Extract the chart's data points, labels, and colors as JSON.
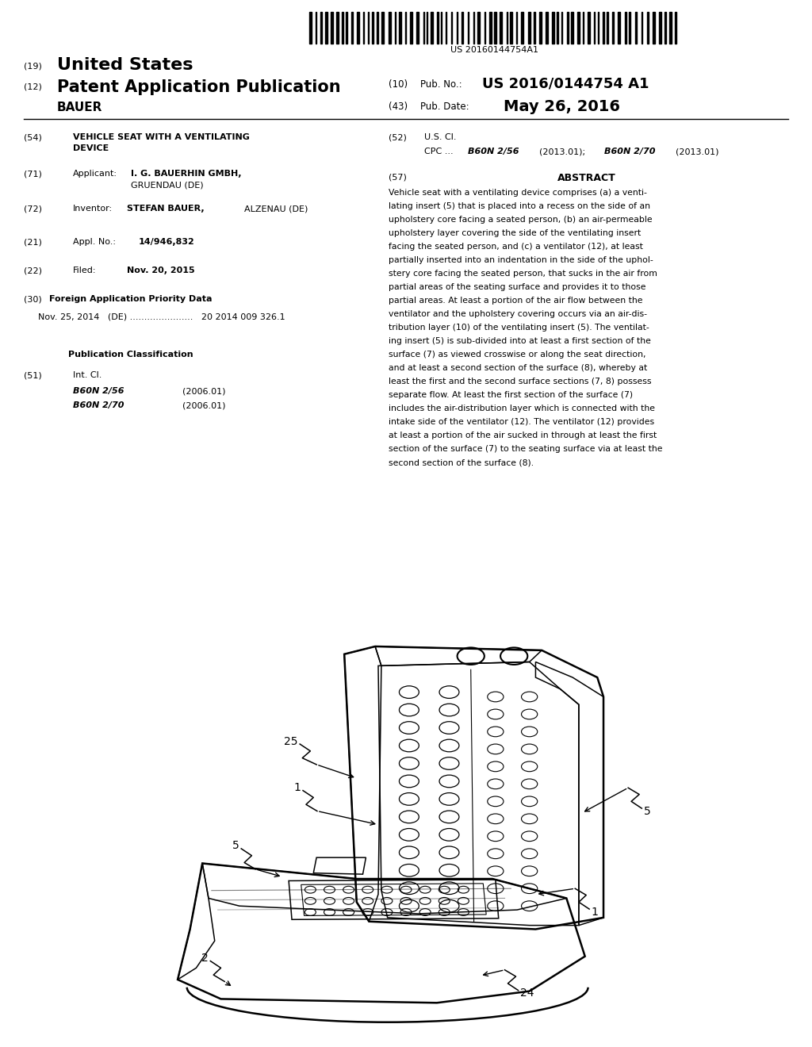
{
  "background_color": "#ffffff",
  "barcode_text": "US 20160144754A1",
  "pub_no_value": "US 2016/0144754 A1",
  "pub_date_value": "May 26, 2016",
  "abstract_text": "Vehicle seat with a ventilating device comprises (a) a venti-\nlating insert (5) that is placed into a recess on the side of an\nupholstery core facing a seated person, (b) an air-permeable\nupholstery layer covering the side of the ventilating insert\nfacing the seated person, and (c) a ventilator (12), at least\npartially inserted into an indentation in the side of the uphol-\nstery core facing the seated person, that sucks in the air from\npartial areas of the seating surface and provides it to those\npartial areas. At least a portion of the air flow between the\nventilator and the upholstery covering occurs via an air-dis-\ntribution layer (10) of the ventilating insert (5). The ventilat-\ning insert (5) is sub-divided into at least a first section of the\nsurface (7) as viewed crosswise or along the seat direction,\nand at least a second section of the surface (8), whereby at\nleast the first and the second surface sections (7, 8) possess\nseparate flow. At least the first section of the surface (7)\nincludes the air-distribution layer which is connected with the\nintake side of the ventilator (12). The ventilator (12) provides\nat least a portion of the air sucked in through at least the first\nsection of the surface (7) to the seating surface via at least the\nsecond section of the surface (8)."
}
